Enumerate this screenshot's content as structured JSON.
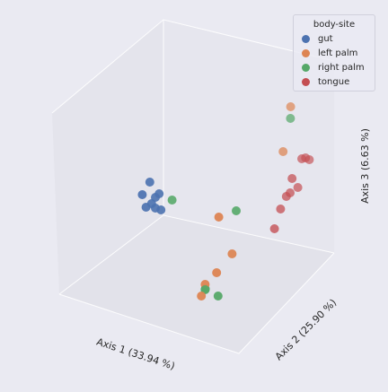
{
  "chart_data": {
    "type": "scatter",
    "projection": "3d",
    "xlabel": "Axis 1 (33.94 %)",
    "ylabel": "Axis 2 (25.90 %)",
    "zlabel": "Axis 3 (6.63 %)",
    "grid": true,
    "legend": {
      "title": "body-site",
      "placement": "top-right",
      "entries": [
        {
          "label": "gut",
          "color": "#4c72b0"
        },
        {
          "label": "left palm",
          "color": "#dd8452"
        },
        {
          "label": "right palm",
          "color": "#55a868"
        },
        {
          "label": "tongue",
          "color": "#c44e52"
        }
      ]
    },
    "series": [
      {
        "name": "gut",
        "color": "#4c72b0",
        "points": [
          [
            -0.32,
            0.04,
            0.16
          ],
          [
            -0.34,
            0.02,
            0.12
          ],
          [
            -0.3,
            0.05,
            0.1
          ],
          [
            -0.29,
            0.06,
            0.11
          ],
          [
            -0.31,
            0.04,
            0.08
          ],
          [
            -0.3,
            0.05,
            0.06
          ],
          [
            -0.28,
            0.06,
            0.05
          ],
          [
            -0.33,
            0.03,
            0.07
          ]
        ]
      },
      {
        "name": "left palm",
        "color": "#dd8452",
        "points": [
          [
            0.2,
            0.28,
            0.36
          ],
          [
            0.18,
            0.26,
            0.2
          ],
          [
            0.16,
            0.02,
            -0.1
          ],
          [
            0.14,
            -0.04,
            -0.15
          ],
          [
            0.12,
            -0.08,
            -0.18
          ],
          [
            0.11,
            -0.09,
            -0.22
          ],
          [
            0.13,
            -0.02,
            0.05
          ]
        ]
      },
      {
        "name": "right palm",
        "color": "#55a868",
        "points": [
          [
            -0.24,
            0.08,
            0.08
          ],
          [
            0.21,
            0.27,
            0.32
          ],
          [
            0.15,
            0.05,
            0.05
          ],
          [
            0.12,
            -0.08,
            -0.2
          ],
          [
            0.11,
            -0.07,
            -0.2
          ],
          [
            0.17,
            -0.06,
            -0.23
          ]
        ]
      },
      {
        "name": "tongue",
        "color": "#c44e52",
        "points": [
          [
            0.24,
            0.3,
            0.16
          ],
          [
            0.25,
            0.31,
            0.16
          ],
          [
            0.26,
            0.32,
            0.15
          ],
          [
            0.23,
            0.26,
            0.1
          ],
          [
            0.24,
            0.28,
            0.06
          ],
          [
            0.23,
            0.25,
            0.05
          ],
          [
            0.22,
            0.24,
            0.04
          ],
          [
            0.21,
            0.22,
            0.0
          ],
          [
            0.22,
            0.18,
            -0.06
          ]
        ]
      }
    ]
  }
}
